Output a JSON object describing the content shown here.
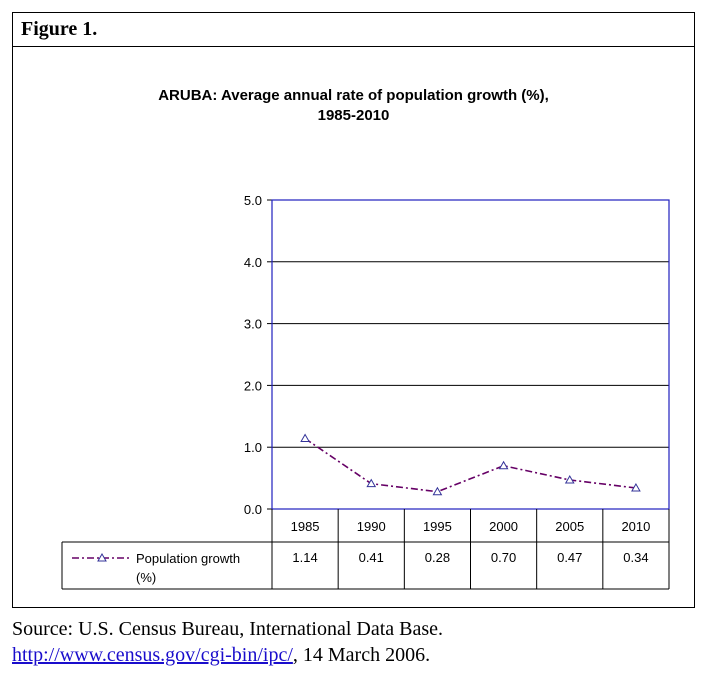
{
  "figure": {
    "label": "Figure 1."
  },
  "chart_data": {
    "type": "line",
    "title": "ARUBA: Average annual rate of population growth (%),",
    "subtitle": "1985-2010",
    "categories": [
      "1985",
      "1990",
      "1995",
      "2000",
      "2005",
      "2010"
    ],
    "series": [
      {
        "name": "Population growth (%)",
        "values": [
          1.14,
          0.41,
          0.28,
          0.7,
          0.47,
          0.34
        ],
        "value_labels": [
          "1.14",
          "0.41",
          "0.28",
          "0.70",
          "0.47",
          "0.34"
        ]
      }
    ],
    "ylim": [
      0.0,
      5.0
    ],
    "yticks": [
      "0.0",
      "1.0",
      "2.0",
      "3.0",
      "4.0",
      "5.0"
    ],
    "grid": true,
    "legend": "data-table",
    "line_color": "#660066",
    "marker_color": "#333399"
  },
  "source": {
    "text": "Source: U.S. Census Bureau, International Data Base.",
    "link": "http://www.census.gov/cgi-bin/ipc/",
    "suffix": ", 14 March 2006."
  }
}
